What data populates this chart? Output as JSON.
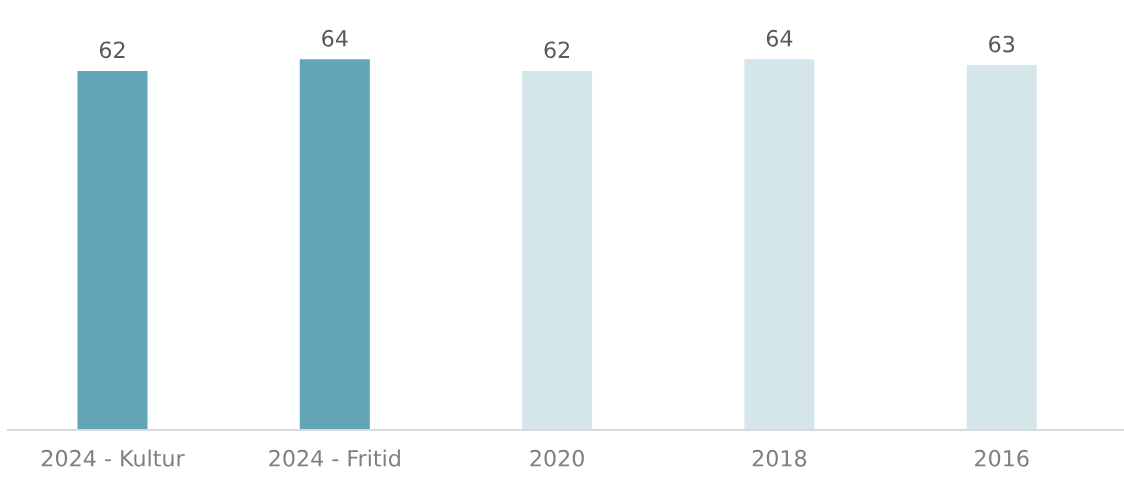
{
  "chart_data": {
    "type": "bar",
    "categories": [
      "2024 - Kultur",
      "2024 - Fritid",
      "2020",
      "2018",
      "2016"
    ],
    "values": [
      62,
      64,
      62,
      64,
      63
    ],
    "colors": [
      "#62a5b8",
      "#62a5b8",
      "#d5e6eb",
      "#d5e6eb",
      "#d5e6eb"
    ],
    "data_labels": true
  }
}
